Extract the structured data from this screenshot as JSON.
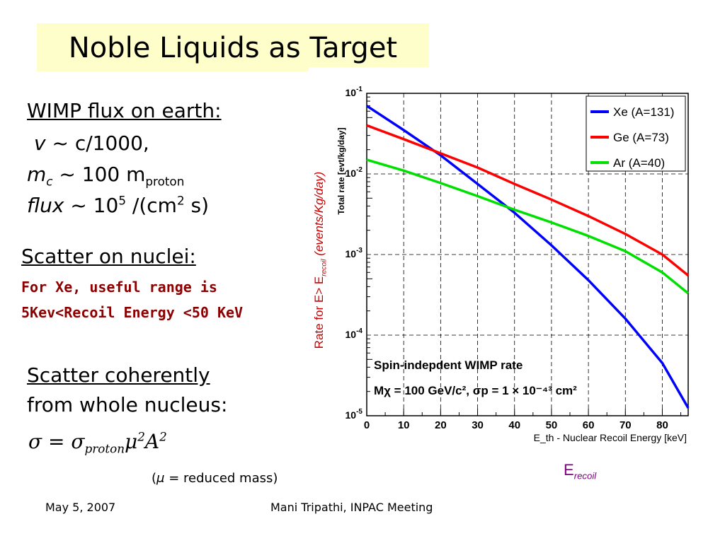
{
  "slide": {
    "title": "Noble Liquids as Target",
    "wimp_heading": "WIMP flux on earth:",
    "velocity": {
      "symbol": "v",
      "text": "~ c/1000,"
    },
    "mass": {
      "symbol": "m",
      "sub": "c",
      "mid": "~ 100 m",
      "sub2": "proton"
    },
    "flux": {
      "symbol": "flux",
      "mid": "~ 10",
      "exp": "5",
      "mid2": "/(cm",
      "exp2": "2",
      "end": "s)"
    },
    "scatter_heading": "Scatter on nuclei:",
    "xe_range_1": "For Xe, useful range is",
    "xe_range_2": "5Kev<Recoil Energy <50 KeV",
    "coherent_1": "Scatter coherently",
    "coherent_2": "from whole nucleus:",
    "formula": {
      "lhs": "σ = σ",
      "sub": "proton",
      "mu": "μ",
      "mu_exp": "2",
      "a": "A",
      "a_exp": "2"
    },
    "mu_note": {
      "open": "(",
      "mu": "μ",
      "rest": " = reduced mass)"
    },
    "rate_label": {
      "prefix": "Rate for E> E",
      "sub": "recoil",
      "suffix": " (events/Kg/day)"
    },
    "erecoil": {
      "main": "E",
      "sub": "recoil"
    },
    "footer_date": "May 5, 2007",
    "footer_center": "Mani Tripathi, INPAC Meeting",
    "colors": {
      "xe": "#0000ff",
      "ge": "#ff0000",
      "ar": "#00e000",
      "title_bg": "#fefecb",
      "dark_red": "#8b0000",
      "label_red": "#cc0000",
      "purple": "#800080"
    }
  },
  "chart_data": {
    "type": "line",
    "xlabel": "E_th - Nuclear Recoil Energy [keV]",
    "ylabel": "Total rate [evt/kg/day]",
    "xlim": [
      0,
      87
    ],
    "ylim": [
      1e-05,
      0.1
    ],
    "yscale": "log",
    "x_ticks": [
      0,
      10,
      20,
      30,
      40,
      50,
      60,
      70,
      80
    ],
    "y_ticks": [
      {
        "value": 1e-05,
        "base": "10",
        "exp": "-5"
      },
      {
        "value": 0.0001,
        "base": "10",
        "exp": "-4"
      },
      {
        "value": 0.001,
        "base": "10",
        "exp": "-3"
      },
      {
        "value": 0.01,
        "base": "10",
        "exp": "-2"
      },
      {
        "value": 0.1,
        "base": "10",
        "exp": "-1"
      }
    ],
    "grid": true,
    "legend_position": "top-right",
    "annotation_1": "Spin-indepdent WIMP rate",
    "annotation_2": "Mχ = 100 GeV/c², σp = 1 × 10⁻⁴³ cm²",
    "series": [
      {
        "name": "Xe (A=131)",
        "color": "#0000ff",
        "x": [
          0,
          10,
          20,
          30,
          40,
          50,
          60,
          70,
          80,
          87
        ],
        "y": [
          0.07,
          0.035,
          0.017,
          0.0075,
          0.0033,
          0.0013,
          0.00048,
          0.00016,
          4.5e-05,
          1.25e-05
        ]
      },
      {
        "name": "Ge (A=73)",
        "color": "#ff0000",
        "x": [
          0,
          10,
          20,
          30,
          40,
          50,
          60,
          70,
          80,
          87
        ],
        "y": [
          0.04,
          0.027,
          0.018,
          0.012,
          0.0075,
          0.0048,
          0.003,
          0.0018,
          0.001,
          0.00055
        ]
      },
      {
        "name": "Ar (A=40)",
        "color": "#00e000",
        "x": [
          0,
          10,
          20,
          30,
          40,
          50,
          60,
          70,
          80,
          87
        ],
        "y": [
          0.015,
          0.011,
          0.0077,
          0.0053,
          0.0036,
          0.0025,
          0.0017,
          0.0011,
          0.0006,
          0.00033
        ]
      }
    ]
  }
}
